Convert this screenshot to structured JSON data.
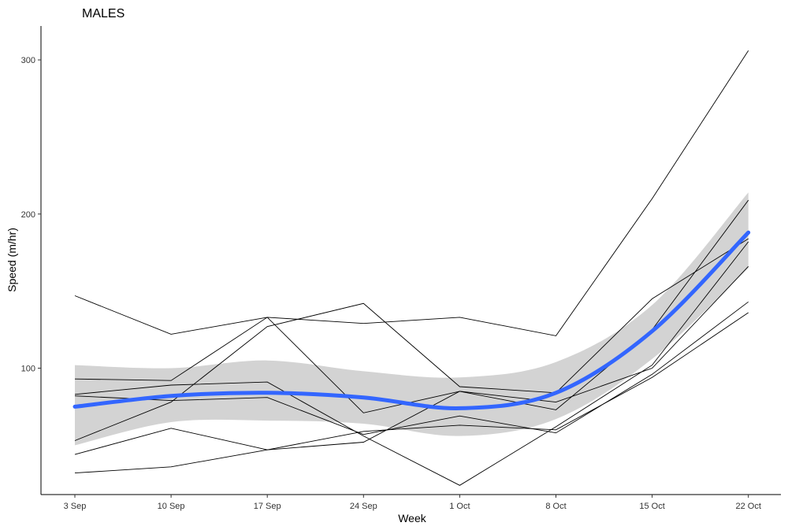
{
  "chart_data": {
    "type": "line",
    "title": "MALES",
    "xlabel": "Week",
    "ylabel": "Speed (m/hr)",
    "categories": [
      "3 Sep",
      "10 Sep",
      "17 Sep",
      "24 Sep",
      "1 Oct",
      "8 Oct",
      "15 Oct",
      "22 Oct"
    ],
    "ylim": [
      18,
      322
    ],
    "yticks": [
      100,
      200,
      300
    ],
    "grid": false,
    "legend": "none",
    "series": [
      {
        "values": [
          147,
          122,
          133,
          129,
          133,
          121,
          210,
          306
        ]
      },
      {
        "values": [
          53,
          78,
          127,
          142,
          88,
          84,
          145,
          184
        ]
      },
      {
        "values": [
          93,
          92,
          133,
          71,
          85,
          73,
          125,
          209
        ]
      },
      {
        "values": [
          83,
          89,
          91,
          56,
          24,
          62,
          102,
          182
        ]
      },
      {
        "values": [
          82,
          79,
          81,
          57,
          69,
          58,
          96,
          143
        ]
      },
      {
        "values": [
          44,
          61,
          47,
          52,
          85,
          78,
          100,
          166
        ]
      },
      {
        "values": [
          32,
          36,
          47,
          59,
          63,
          60,
          94,
          136
        ]
      }
    ],
    "smooth": {
      "color": "#3366FF",
      "values": [
        75,
        82,
        84,
        81,
        74,
        84,
        124,
        188
      ],
      "lower": [
        50,
        65,
        66,
        64,
        56,
        67,
        106,
        165
      ],
      "upper": [
        102,
        100,
        105,
        98,
        94,
        104,
        141,
        214
      ],
      "band_color": "#d3d3d3"
    }
  }
}
